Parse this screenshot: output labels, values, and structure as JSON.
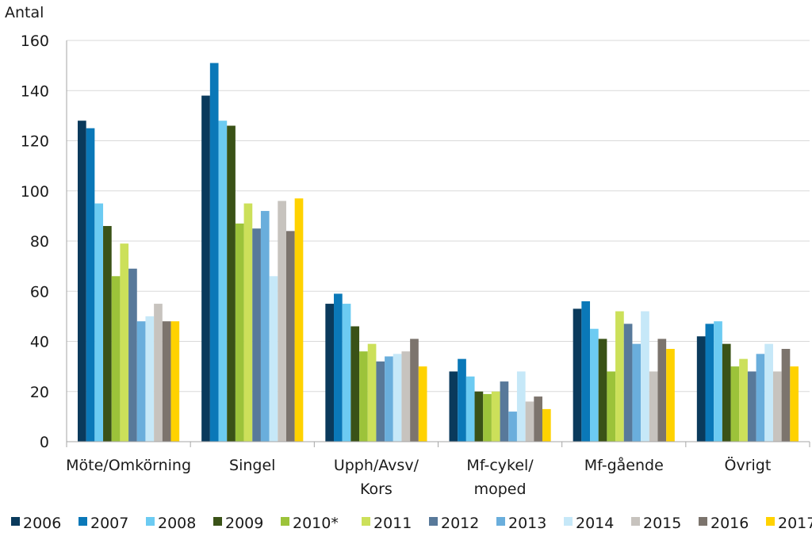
{
  "chart_data": {
    "type": "bar",
    "title": "",
    "xlabel": "",
    "ylabel": "Antal",
    "ylim": [
      0,
      160
    ],
    "yticks": [
      0,
      20,
      40,
      60,
      80,
      100,
      120,
      140,
      160
    ],
    "grid": true,
    "legend_position": "bottom",
    "categories": [
      [
        "Möte/Omkörning"
      ],
      [
        "Singel"
      ],
      [
        "Upph/Avsv/",
        "Kors"
      ],
      [
        "Mf-cykel/",
        "moped"
      ],
      [
        "Mf-gående"
      ],
      [
        "Övrigt"
      ]
    ],
    "series": [
      {
        "name": "2006",
        "color": "#0a3a5c",
        "values": [
          128,
          138,
          55,
          28,
          53,
          42
        ]
      },
      {
        "name": "2007",
        "color": "#0a78b8",
        "values": [
          125,
          151,
          59,
          33,
          56,
          47
        ]
      },
      {
        "name": "2008",
        "color": "#6ccbf2",
        "values": [
          95,
          128,
          55,
          26,
          45,
          48
        ]
      },
      {
        "name": "2009",
        "color": "#3a5217",
        "values": [
          86,
          126,
          46,
          20,
          41,
          39
        ]
      },
      {
        "name": "2010*",
        "color": "#9cc33a",
        "values": [
          66,
          87,
          36,
          19,
          28,
          30
        ]
      },
      {
        "name": "2011",
        "color": "#cce05a",
        "values": [
          79,
          95,
          39,
          20,
          52,
          33
        ]
      },
      {
        "name": "2012",
        "color": "#58799a",
        "values": [
          69,
          85,
          32,
          24,
          47,
          28
        ]
      },
      {
        "name": "2013",
        "color": "#6aaedc",
        "values": [
          48,
          92,
          34,
          12,
          39,
          35
        ]
      },
      {
        "name": "2014",
        "color": "#c6e8f8",
        "values": [
          50,
          66,
          35,
          28,
          52,
          39
        ]
      },
      {
        "name": "2015",
        "color": "#c7c3be",
        "values": [
          55,
          96,
          36,
          16,
          28,
          28
        ]
      },
      {
        "name": "2016",
        "color": "#7c746d",
        "values": [
          48,
          84,
          41,
          18,
          41,
          37
        ]
      },
      {
        "name": "2017",
        "color": "#ffd200",
        "values": [
          48,
          97,
          30,
          13,
          37,
          30
        ]
      }
    ]
  }
}
